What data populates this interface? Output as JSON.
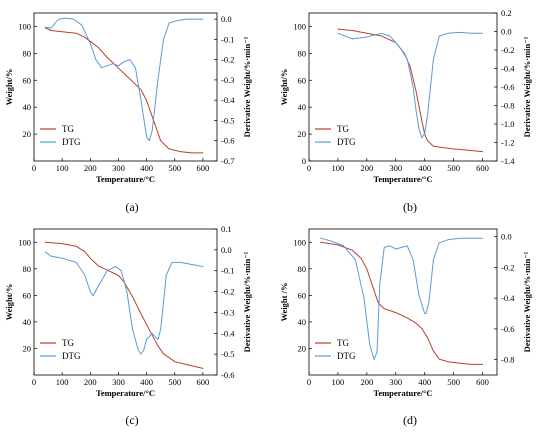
{
  "colors": {
    "tg": "#b5412a",
    "dtg": "#5b9bd5"
  },
  "chart_data": [
    {
      "type": "line",
      "panel_label": "(a)",
      "xlabel": "Temperature/°C",
      "ylabel_left": "Weight/%",
      "ylabel_right": "Derivative Weight/%·min⁻¹",
      "xlim": [
        0,
        650
      ],
      "xticks": [
        0,
        100,
        200,
        300,
        400,
        500,
        600
      ],
      "ylim_left": [
        0,
        110
      ],
      "yticks_left": [
        20,
        40,
        60,
        80,
        100
      ],
      "ylim_right": [
        -0.7,
        0.03
      ],
      "yticks_right": [
        "0.0",
        "-0.1",
        "-0.2",
        "-0.3",
        "-0.4",
        "-0.5",
        "-0.6",
        "-0.7"
      ],
      "legend": [
        "TG",
        "DTG"
      ],
      "series": [
        {
          "name": "TG",
          "axis": "left",
          "x": [
            40,
            60,
            100,
            150,
            180,
            200,
            230,
            260,
            300,
            340,
            380,
            400,
            420,
            450,
            480,
            520,
            560,
            600
          ],
          "y": [
            99,
            97,
            96,
            95,
            92,
            89,
            84,
            77,
            69,
            61,
            53,
            45,
            33,
            15,
            9,
            7,
            6,
            6
          ]
        },
        {
          "name": "DTG",
          "axis": "right",
          "x": [
            40,
            60,
            70,
            80,
            90,
            110,
            140,
            170,
            200,
            220,
            240,
            260,
            280,
            300,
            320,
            340,
            360,
            380,
            400,
            410,
            420,
            440,
            460,
            480,
            500,
            540,
            600
          ],
          "y": [
            -0.04,
            -0.045,
            -0.03,
            -0.01,
            0.0,
            0.005,
            0.0,
            -0.03,
            -0.12,
            -0.2,
            -0.24,
            -0.23,
            -0.22,
            -0.23,
            -0.21,
            -0.2,
            -0.24,
            -0.4,
            -0.58,
            -0.6,
            -0.55,
            -0.3,
            -0.1,
            -0.02,
            -0.01,
            0.0,
            0.0
          ]
        }
      ]
    },
    {
      "type": "line",
      "panel_label": "(b)",
      "xlabel": "Temperature/°C",
      "ylabel_left": "Weight/%",
      "ylabel_right": "Derivative Weight/%·min⁻¹",
      "xlim": [
        0,
        650
      ],
      "xticks": [
        0,
        100,
        200,
        300,
        400,
        500,
        600
      ],
      "ylim_left": [
        0,
        110
      ],
      "yticks_left": [
        0,
        20,
        40,
        60,
        80,
        100
      ],
      "ylim_right": [
        -1.4,
        0.2
      ],
      "yticks_right": [
        "0.2",
        "0.0",
        "-0.2",
        "-0.4",
        "-0.6",
        "-0.8",
        "-1.0",
        "-1.2",
        "-1.4"
      ],
      "legend": [
        "TG",
        "DTG"
      ],
      "series": [
        {
          "name": "TG",
          "axis": "left",
          "x": [
            100,
            150,
            200,
            250,
            300,
            330,
            350,
            370,
            390,
            400,
            410,
            430,
            460,
            500,
            550,
            600
          ],
          "y": [
            98,
            97,
            95,
            93,
            88,
            80,
            70,
            52,
            30,
            20,
            15,
            11,
            10,
            9,
            8,
            7
          ]
        },
        {
          "name": "DTG",
          "axis": "right",
          "x": [
            100,
            150,
            200,
            250,
            280,
            300,
            320,
            340,
            360,
            370,
            380,
            390,
            400,
            410,
            420,
            430,
            450,
            480,
            520,
            560,
            600
          ],
          "y": [
            -0.02,
            -0.08,
            -0.06,
            -0.02,
            -0.05,
            -0.12,
            -0.2,
            -0.3,
            -0.6,
            -0.85,
            -1.05,
            -1.15,
            -1.1,
            -0.9,
            -0.6,
            -0.3,
            -0.05,
            -0.02,
            -0.01,
            -0.02,
            -0.02
          ]
        }
      ]
    },
    {
      "type": "line",
      "panel_label": "(c)",
      "xlabel": "Temperature/°C",
      "ylabel_left": "Weight/%",
      "ylabel_right": "Derivative Weight/%·min⁻¹",
      "xlim": [
        0,
        650
      ],
      "xticks": [
        0,
        100,
        200,
        300,
        400,
        500,
        600
      ],
      "ylim_left": [
        0,
        110
      ],
      "yticks_left": [
        20,
        40,
        60,
        80,
        100
      ],
      "ylim_right": [
        -0.6,
        0.1
      ],
      "yticks_right": [
        "0.1",
        "0.0",
        "-0.1",
        "-0.2",
        "-0.3",
        "-0.4",
        "-0.5",
        "-0.6"
      ],
      "legend": [
        "TG",
        "DTG"
      ],
      "series": [
        {
          "name": "TG",
          "axis": "left",
          "x": [
            40,
            100,
            150,
            180,
            200,
            230,
            260,
            300,
            320,
            350,
            380,
            400,
            420,
            440,
            460,
            500,
            540,
            600
          ],
          "y": [
            100,
            99,
            97,
            93,
            88,
            82,
            79,
            75,
            70,
            59,
            46,
            38,
            30,
            22,
            16,
            10,
            8,
            5
          ]
        },
        {
          "name": "DTG",
          "axis": "right",
          "x": [
            40,
            60,
            100,
            150,
            180,
            200,
            210,
            230,
            260,
            290,
            310,
            330,
            350,
            370,
            380,
            390,
            400,
            420,
            440,
            450,
            460,
            470,
            490,
            520,
            560,
            600
          ],
          "y": [
            -0.01,
            -0.03,
            -0.04,
            -0.06,
            -0.12,
            -0.2,
            -0.22,
            -0.17,
            -0.1,
            -0.08,
            -0.1,
            -0.2,
            -0.38,
            -0.48,
            -0.5,
            -0.48,
            -0.43,
            -0.4,
            -0.43,
            -0.38,
            -0.25,
            -0.12,
            -0.06,
            -0.06,
            -0.07,
            -0.08
          ]
        }
      ]
    },
    {
      "type": "line",
      "panel_label": "(d)",
      "xlabel": "Temperature/°C",
      "ylabel_left": "Weight /%",
      "ylabel_right": "Derivative Weight/%·min⁻¹",
      "xlim": [
        0,
        650
      ],
      "xticks": [
        0,
        100,
        200,
        300,
        400,
        500,
        600
      ],
      "ylim_left": [
        0,
        110
      ],
      "yticks_left": [
        20,
        40,
        60,
        80,
        100
      ],
      "ylim_right": [
        -0.9,
        0.05
      ],
      "yticks_right": [
        "0.0",
        "-0.2",
        "-0.4",
        "-0.6",
        "-0.8"
      ],
      "legend": [
        "TG",
        "DTG"
      ],
      "series": [
        {
          "name": "TG",
          "axis": "left",
          "x": [
            40,
            100,
            150,
            180,
            200,
            220,
            240,
            260,
            300,
            340,
            370,
            390,
            410,
            430,
            450,
            480,
            520,
            560,
            600
          ],
          "y": [
            100,
            98,
            94,
            88,
            80,
            67,
            54,
            50,
            47,
            43,
            39,
            35,
            28,
            18,
            12,
            10,
            9,
            8,
            8
          ]
        },
        {
          "name": "DTG",
          "axis": "right",
          "x": [
            40,
            80,
            120,
            160,
            190,
            210,
            225,
            235,
            245,
            260,
            280,
            300,
            320,
            340,
            360,
            380,
            400,
            405,
            415,
            430,
            450,
            480,
            520,
            560,
            600
          ],
          "y": [
            -0.01,
            -0.03,
            -0.06,
            -0.15,
            -0.4,
            -0.7,
            -0.8,
            -0.75,
            -0.3,
            -0.07,
            -0.06,
            -0.08,
            -0.07,
            -0.06,
            -0.15,
            -0.38,
            -0.5,
            -0.5,
            -0.42,
            -0.15,
            -0.04,
            -0.02,
            -0.01,
            -0.01,
            -0.01
          ]
        }
      ]
    }
  ]
}
